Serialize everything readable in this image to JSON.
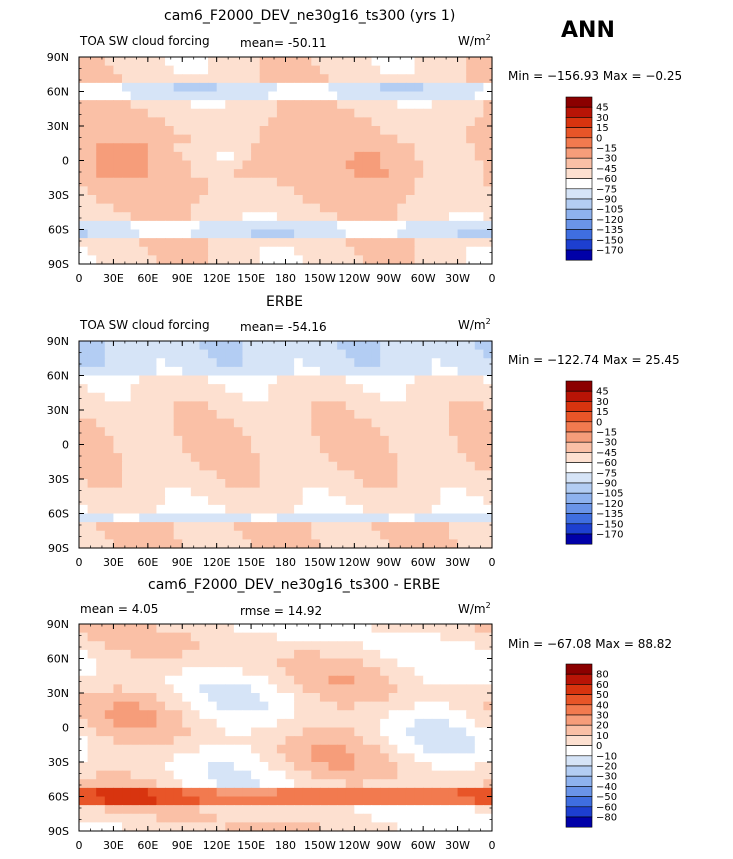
{
  "figure": {
    "season_label": "ANN",
    "units_main": "W/m",
    "units_exp": "2"
  },
  "chart_data": [
    {
      "type": "heatmap",
      "title": "cam6_F2000_DEV_ne30g16_ts300 (yrs 1)",
      "variable_label": "TOA SW cloud forcing",
      "stat_text": "mean= -50.11",
      "minmax_text": "Min = −156.93 Max =  −0.25",
      "xlabel": "",
      "ylabel": "",
      "x_tick_labels": [
        "0",
        "30E",
        "60E",
        "90E",
        "120E",
        "150E",
        "180",
        "150W",
        "120W",
        "90W",
        "60W",
        "30W",
        "0"
      ],
      "y_tick_labels": [
        "90N",
        "60N",
        "30N",
        "0",
        "30S",
        "60S",
        "90S"
      ],
      "xlim": [
        0,
        360
      ],
      "ylim": [
        -90,
        90
      ],
      "colorbar_levels": [
        "45",
        "30",
        "15",
        "0",
        "−15",
        "−30",
        "−45",
        "−60",
        "−75",
        "−90",
        "−105",
        "−120",
        "−135",
        "−150",
        "−170"
      ],
      "colorbar_colors": [
        "#8b0000",
        "#b81406",
        "#d8340f",
        "#e85528",
        "#f27a4f",
        "#f69d7a",
        "#fac0a6",
        "#fde0d0",
        "#ffffff",
        "#d6e4f7",
        "#b3cdf3",
        "#8eb2ee",
        "#6a94e8",
        "#3f6ee0",
        "#1d3fd0",
        "#0000a8"
      ]
    },
    {
      "type": "heatmap",
      "title": "ERBE",
      "variable_label": "TOA SW cloud forcing",
      "stat_text": "mean= -54.16",
      "minmax_text": "Min = −122.74 Max =  25.45",
      "xlabel": "",
      "ylabel": "",
      "x_tick_labels": [
        "0",
        "30E",
        "60E",
        "90E",
        "120E",
        "150E",
        "180",
        "150W",
        "120W",
        "90W",
        "60W",
        "30W",
        "0"
      ],
      "y_tick_labels": [
        "90N",
        "60N",
        "30N",
        "0",
        "30S",
        "60S",
        "90S"
      ],
      "xlim": [
        0,
        360
      ],
      "ylim": [
        -90,
        90
      ],
      "colorbar_levels": [
        "45",
        "30",
        "15",
        "0",
        "−15",
        "−30",
        "−45",
        "−60",
        "−75",
        "−90",
        "−105",
        "−120",
        "−135",
        "−150",
        "−170"
      ],
      "colorbar_colors": [
        "#8b0000",
        "#b81406",
        "#d8340f",
        "#e85528",
        "#f27a4f",
        "#f69d7a",
        "#fac0a6",
        "#fde0d0",
        "#ffffff",
        "#d6e4f7",
        "#b3cdf3",
        "#8eb2ee",
        "#6a94e8",
        "#3f6ee0",
        "#1d3fd0",
        "#0000a8"
      ]
    },
    {
      "type": "heatmap",
      "title": "cam6_F2000_DEV_ne30g16_ts300 - ERBE",
      "variable_label": "",
      "stat_text": "mean =    4.05",
      "stat_text_2": "rmse =  14.92",
      "minmax_text": "Min = −67.08 Max =  88.82",
      "xlabel": "",
      "ylabel": "",
      "x_tick_labels": [
        "0",
        "30E",
        "60E",
        "90E",
        "120E",
        "150E",
        "180",
        "150W",
        "120W",
        "90W",
        "60W",
        "30W",
        "0"
      ],
      "y_tick_labels": [
        "90N",
        "60N",
        "30N",
        "0",
        "30S",
        "60S",
        "90S"
      ],
      "xlim": [
        0,
        360
      ],
      "ylim": [
        -90,
        90
      ],
      "colorbar_levels": [
        "80",
        "60",
        "50",
        "40",
        "30",
        "20",
        "10",
        "0",
        "−10",
        "−20",
        "−30",
        "−40",
        "−50",
        "−60",
        "−80"
      ],
      "colorbar_colors": [
        "#8b0000",
        "#b81406",
        "#d8340f",
        "#e85528",
        "#f27a4f",
        "#f69d7a",
        "#fac0a6",
        "#fde0d0",
        "#ffffff",
        "#d6e4f7",
        "#b3cdf3",
        "#8eb2ee",
        "#6a94e8",
        "#3f6ee0",
        "#1d3fd0",
        "#0000a8"
      ]
    }
  ]
}
